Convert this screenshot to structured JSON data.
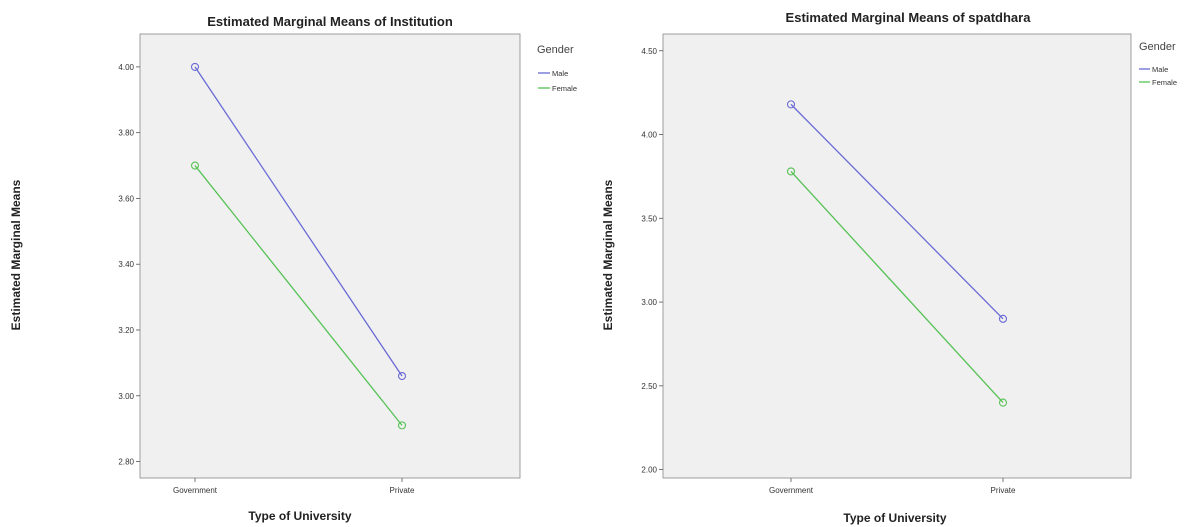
{
  "chart_data": [
    {
      "type": "line",
      "title": "Estimated Marginal Means of Institution",
      "xlabel": "Type of University",
      "ylabel": "Estimated Marginal Means",
      "categories": [
        "Government",
        "Private"
      ],
      "ylim": [
        2.75,
        4.1
      ],
      "yticks": [
        2.8,
        3.0,
        3.2,
        3.4,
        3.6,
        3.8,
        4.0
      ],
      "ytick_labels": [
        "2.80",
        "3.00",
        "3.20",
        "3.40",
        "3.60",
        "3.80",
        "4.00"
      ],
      "legend_title": "Gender",
      "legend_placement": "right",
      "grid": false,
      "series": [
        {
          "name": "Male",
          "values": [
            4.0,
            3.06
          ],
          "color": "#6a6ad6"
        },
        {
          "name": "Female",
          "values": [
            3.7,
            2.91
          ],
          "color": "#55c255"
        }
      ]
    },
    {
      "type": "line",
      "title": "Estimated Marginal Means of spatdhara",
      "xlabel": "Type of University",
      "ylabel": "Estimated Marginal Means",
      "categories": [
        "Government",
        "Private"
      ],
      "ylim": [
        1.95,
        4.6
      ],
      "yticks": [
        2.0,
        2.5,
        3.0,
        3.5,
        4.0,
        4.5
      ],
      "ytick_labels": [
        "2.00",
        "2.50",
        "3.00",
        "3.50",
        "4.00",
        "4.50"
      ],
      "legend_title": "Gender",
      "legend_placement": "right",
      "grid": false,
      "series": [
        {
          "name": "Male",
          "values": [
            4.18,
            2.9
          ],
          "color": "#6a6ad6"
        },
        {
          "name": "Female",
          "values": [
            3.78,
            2.4
          ],
          "color": "#55c255"
        }
      ]
    }
  ]
}
